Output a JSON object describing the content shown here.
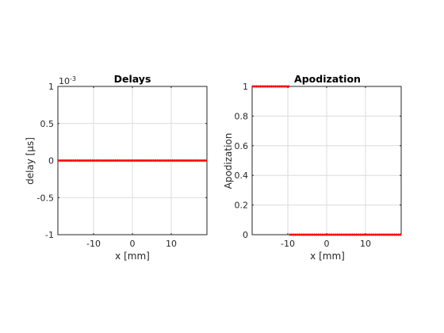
{
  "chart_data": [
    {
      "type": "line",
      "title": "Delays",
      "xlabel": "x [mm]",
      "ylabel": "delay  [μs]",
      "y_exponent_label": "10",
      "y_exponent_power": "-3",
      "xlim": [
        -19.2,
        19.2
      ],
      "ylim": [
        -1,
        1
      ],
      "xticks": [
        -10,
        0,
        10
      ],
      "yticks": [
        -1,
        -0.5,
        0,
        0.5,
        1
      ],
      "xtick_labels": [
        "-10",
        "0",
        "10"
      ],
      "ytick_labels": [
        "-1",
        "-0.5",
        "0",
        "0.5",
        "1"
      ],
      "grid": true,
      "color": "#ff0000",
      "series": [
        {
          "segments": [
            {
              "x": [
                -19.2,
                19.2
              ],
              "y": [
                0,
                0
              ]
            }
          ]
        }
      ]
    },
    {
      "type": "line",
      "title": "Apodization",
      "xlabel": "x [mm]",
      "ylabel": "Apodization",
      "xlim": [
        -19.2,
        19.2
      ],
      "ylim": [
        0,
        1
      ],
      "xticks": [
        -10,
        0,
        10
      ],
      "yticks": [
        0,
        0.2,
        0.4,
        0.6,
        0.8,
        1
      ],
      "xtick_labels": [
        "-10",
        "0",
        "10"
      ],
      "ytick_labels": [
        "0",
        "0.2",
        "0.4",
        "0.6",
        "0.8",
        "1"
      ],
      "grid": true,
      "color": "#ff0000",
      "series": [
        {
          "segments": [
            {
              "x": [
                -19.2,
                -9.6
              ],
              "y": [
                1,
                1
              ]
            },
            {
              "x": [
                -9.6,
                19.2
              ],
              "y": [
                0,
                0
              ]
            }
          ]
        }
      ]
    }
  ]
}
